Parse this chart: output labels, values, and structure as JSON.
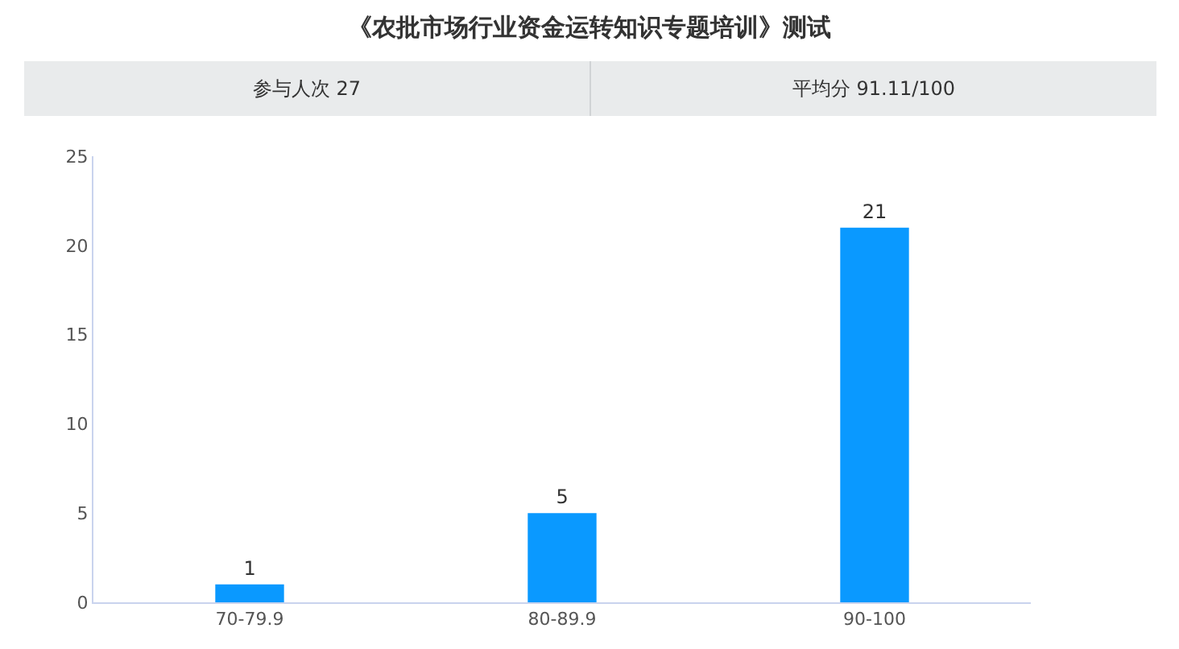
{
  "chart_data": {
    "type": "bar",
    "title": "《农批市场行业资金运转知识专题培训》测试",
    "annotations": [
      "参与人次 27",
      "平均分 91.11/100"
    ],
    "categories": [
      "70-79.9",
      "80-89.9",
      "90-100"
    ],
    "values": [
      1,
      5,
      21
    ],
    "color": "#0a99ff",
    "ylim": [
      0,
      25
    ],
    "yticks": [
      0,
      5,
      10,
      15,
      20,
      25
    ],
    "grid": false,
    "data_labels": true
  }
}
